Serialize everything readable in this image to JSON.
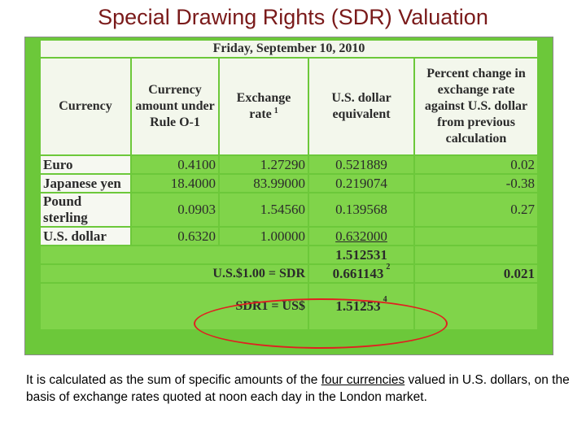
{
  "title": "Special Drawing Rights (SDR) Valuation",
  "table": {
    "date": "Friday, September 10, 2010",
    "headers": {
      "currency": "Currency",
      "amount": "Currency amount under Rule O-1",
      "rate": "Exchange rate",
      "rate_note": "1",
      "usd": "U.S. dollar equivalent",
      "pct": "Percent change in exchange rate against U.S. dollar from previous calculation"
    },
    "rows": [
      {
        "currency": "Euro",
        "amount": "0.4100",
        "rate": "1.27290",
        "usd": "0.521889",
        "pct": "0.02"
      },
      {
        "currency": "Japanese yen",
        "amount": "18.4000",
        "rate": "83.99000",
        "usd": "0.219074",
        "pct": "-0.38"
      },
      {
        "currency": "Pound sterling",
        "amount": "0.0903",
        "rate": "1.54560",
        "usd": "0.139568",
        "pct": "0.27"
      },
      {
        "currency": "U.S. dollar",
        "amount": "0.6320",
        "rate": "1.00000",
        "usd": "0.632000",
        "pct": ""
      }
    ],
    "total": "1.512531",
    "usd_sdr_label": "U.S.$1.00 = SDR",
    "usd_sdr_value": "0.661143",
    "usd_sdr_note": "2",
    "usd_sdr_pct": "0.021",
    "sdr_usd_label": "SDR1 = US$",
    "sdr_usd_value": "1.51253",
    "sdr_usd_note": "4"
  },
  "paragraph": {
    "before": "It is calculated as the sum of specific amounts of the ",
    "underlined": "four currencies",
    "after": " valued in U.S. dollars, on the basis of exchange rates quoted at noon each day in the London market."
  },
  "colors": {
    "title": "#7a1a1a",
    "table_green": "#6cc83a",
    "highlight_ellipse": "#e02020"
  }
}
